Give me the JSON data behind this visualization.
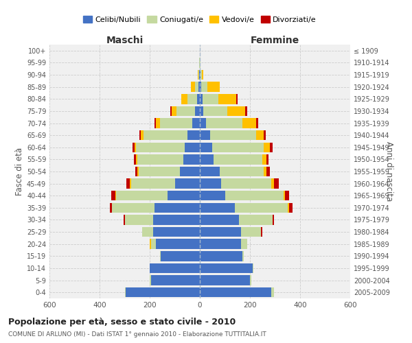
{
  "age_groups": [
    "0-4",
    "5-9",
    "10-14",
    "15-19",
    "20-24",
    "25-29",
    "30-34",
    "35-39",
    "40-44",
    "45-49",
    "50-54",
    "55-59",
    "60-64",
    "65-69",
    "70-74",
    "75-79",
    "80-84",
    "85-89",
    "90-94",
    "95-99",
    "100+"
  ],
  "birth_years": [
    "2005-2009",
    "2000-2004",
    "1995-1999",
    "1990-1994",
    "1985-1989",
    "1980-1984",
    "1975-1979",
    "1970-1974",
    "1965-1969",
    "1960-1964",
    "1955-1959",
    "1950-1954",
    "1945-1949",
    "1940-1944",
    "1935-1939",
    "1930-1934",
    "1925-1929",
    "1920-1924",
    "1915-1919",
    "1910-1914",
    "≤ 1909"
  ],
  "colors": {
    "celibi": "#4472c4",
    "coniugati": "#c5d9a0",
    "vedovi": "#ffc000",
    "divorziati": "#c00000"
  },
  "maschi": {
    "celibi": [
      295,
      195,
      200,
      155,
      175,
      185,
      185,
      180,
      130,
      100,
      80,
      65,
      60,
      50,
      30,
      18,
      10,
      5,
      2,
      1,
      0
    ],
    "coniugati": [
      5,
      5,
      0,
      5,
      20,
      45,
      115,
      170,
      205,
      175,
      165,
      185,
      195,
      175,
      130,
      75,
      40,
      15,
      3,
      1,
      0
    ],
    "vedovi": [
      0,
      0,
      0,
      0,
      5,
      0,
      0,
      0,
      3,
      5,
      5,
      5,
      5,
      10,
      15,
      20,
      25,
      15,
      3,
      1,
      0
    ],
    "divorziati": [
      0,
      0,
      0,
      0,
      0,
      0,
      5,
      10,
      15,
      12,
      8,
      8,
      8,
      5,
      7,
      5,
      0,
      0,
      0,
      0,
      0
    ]
  },
  "femmine": {
    "celibi": [
      285,
      200,
      210,
      170,
      165,
      165,
      155,
      140,
      100,
      85,
      80,
      55,
      50,
      40,
      25,
      15,
      10,
      5,
      2,
      1,
      0
    ],
    "coniugati": [
      10,
      5,
      5,
      5,
      25,
      80,
      135,
      210,
      235,
      200,
      175,
      195,
      205,
      185,
      145,
      95,
      65,
      25,
      5,
      1,
      0
    ],
    "vedovi": [
      0,
      0,
      0,
      0,
      0,
      0,
      0,
      5,
      5,
      10,
      10,
      15,
      25,
      30,
      55,
      70,
      70,
      50,
      8,
      2,
      1
    ],
    "divorziati": [
      0,
      0,
      0,
      0,
      0,
      5,
      5,
      15,
      15,
      20,
      15,
      10,
      10,
      8,
      8,
      8,
      5,
      0,
      0,
      0,
      0
    ]
  },
  "title": "Popolazione per età, sesso e stato civile - 2010",
  "subtitle": "COMUNE DI ARLUNO (MI) - Dati ISTAT 1° gennaio 2010 - Elaborazione TUTTITALIA.IT",
  "xlabel_left": "Maschi",
  "xlabel_right": "Femmine",
  "ylabel_left": "Fasce di età",
  "ylabel_right": "Anni di nascita",
  "xlim": 600,
  "legend_labels": [
    "Celibi/Nubili",
    "Coniugati/e",
    "Vedovi/e",
    "Divorziati/e"
  ],
  "bg_color": "#ffffff",
  "plot_bg_color": "#f0f0f0",
  "grid_color": "#cccccc"
}
